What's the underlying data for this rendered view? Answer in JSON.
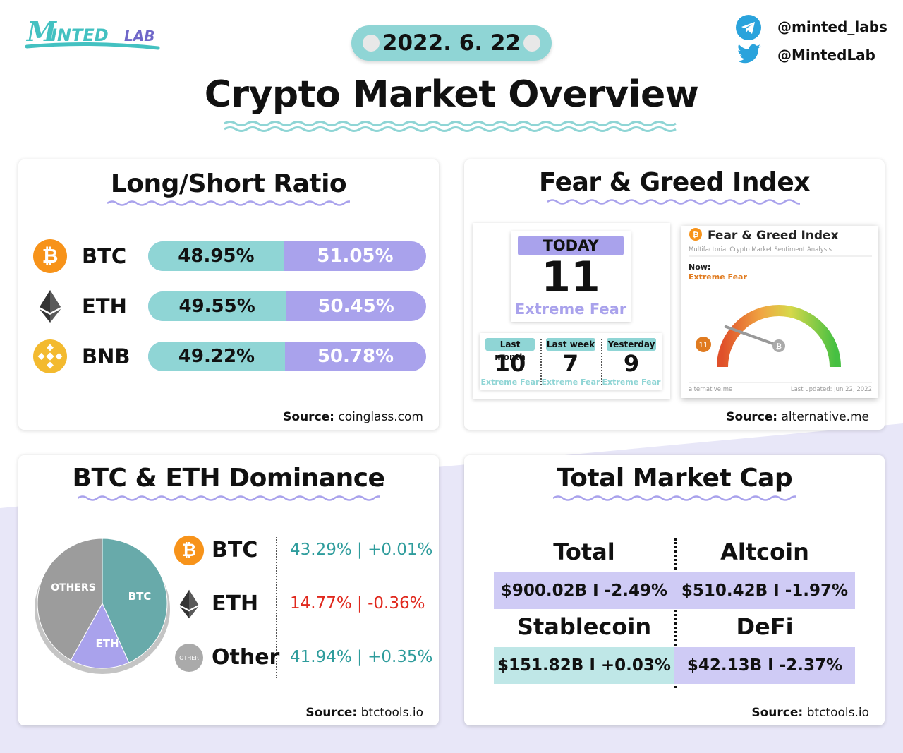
{
  "header": {
    "logo_text": "MintedLab",
    "date": "2022. 6. 22",
    "title": "Crypto Market Overview",
    "telegram_handle": "@minted_labs",
    "twitter_handle": "@MintedLab"
  },
  "colors": {
    "teal": "#8fd5d5",
    "purple": "#a9a2ec",
    "red": "#e0281d",
    "green": "#2e9c9c",
    "orange": "#f7931a",
    "bnb": "#f3ba2f"
  },
  "long_short": {
    "title": "Long/Short Ratio",
    "rows": [
      {
        "symbol": "BTC",
        "icon": "bitcoin-icon",
        "long": "48.95%",
        "short": "51.05%",
        "long_fraction": 0.4895
      },
      {
        "symbol": "ETH",
        "icon": "ethereum-icon",
        "long": "49.55%",
        "short": "50.45%",
        "long_fraction": 0.4955
      },
      {
        "symbol": "BNB",
        "icon": "bnb-icon",
        "long": "49.22%",
        "short": "50.78%",
        "long_fraction": 0.4922
      }
    ],
    "source_label": "Source:",
    "source": "coinglass.com"
  },
  "fear_greed": {
    "title": "Fear & Greed Index",
    "today_label": "TODAY",
    "today_value": "11",
    "today_class": "Extreme Fear",
    "history": [
      {
        "label": "Last month",
        "value": "10",
        "class": "Extreme Fear"
      },
      {
        "label": "Last week",
        "value": "7",
        "class": "Extreme Fear"
      },
      {
        "label": "Yesterday",
        "value": "9",
        "class": "Extreme Fear"
      }
    ],
    "widget": {
      "title": "Fear & Greed Index",
      "subtitle": "Multifactorial Crypto Market Sentiment Analysis",
      "now_label": "Now:",
      "now_value": "Extreme Fear",
      "gauge_value": "11",
      "footer_left": "alternative.me",
      "footer_right": "Last updated: Jun 22, 2022"
    },
    "source_label": "Source:",
    "source": "alternative.me"
  },
  "dominance": {
    "title": "BTC & ETH Dominance",
    "pie_labels": {
      "btc": "BTC",
      "eth": "ETH",
      "other": "OTHERS"
    },
    "rows": [
      {
        "symbol": "BTC",
        "icon": "bitcoin-icon",
        "value": "43.29% | +0.01%",
        "color": "#2e9c9c",
        "share": 43.29
      },
      {
        "symbol": "ETH",
        "icon": "ethereum-icon",
        "value": "14.77% | -0.36%",
        "color": "#e0281d",
        "share": 14.77
      },
      {
        "symbol": "Other",
        "icon": "other-icon",
        "icon_text": "OTHER",
        "value": "41.94% | +0.35%",
        "color": "#2e9c9c",
        "share": 41.94
      }
    ],
    "source_label": "Source:",
    "source": "btctools.io"
  },
  "market_cap": {
    "title": "Total Market Cap",
    "total_label": "Total",
    "total_value": "$900.02B I -2.49%",
    "altcoin_label": "Altcoin",
    "altcoin_value": "$510.42B I -1.97%",
    "stablecoin_label": "Stablecoin",
    "stablecoin_value": "$151.82B I +0.03%",
    "defi_label": "DeFi",
    "defi_value": "$42.13B I -2.37%",
    "source_label": "Source:",
    "source": "btctools.io"
  }
}
